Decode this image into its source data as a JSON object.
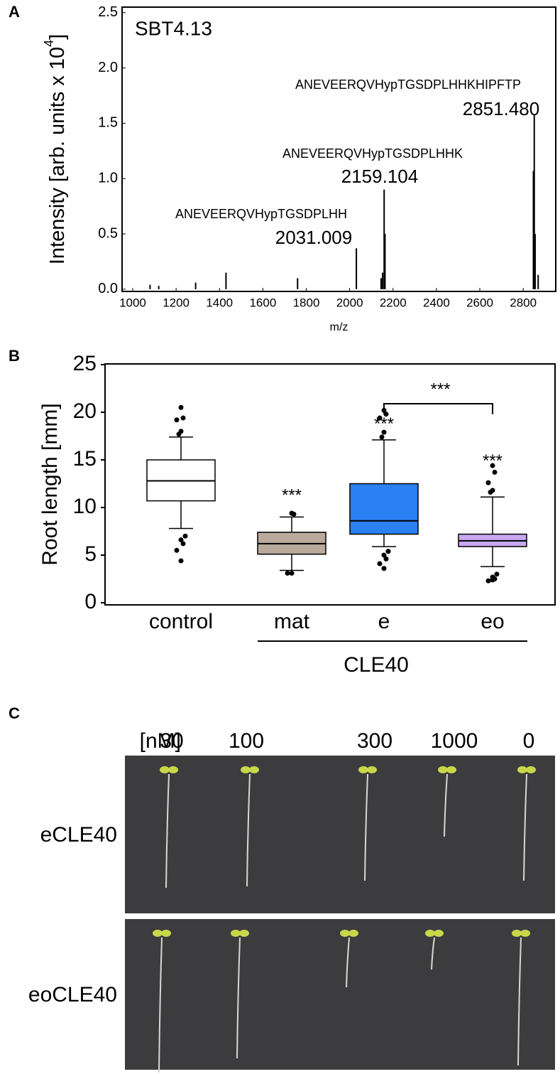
{
  "panel_labels": [
    "A",
    "B",
    "C"
  ],
  "chart_data": [
    {
      "type": "spectrum",
      "inset_title": "SBT4.13",
      "x_label": "m/z",
      "y_label": "Intensity [arb. units x 10",
      "y_label_exponent": "4",
      "y_label_end": "]",
      "x": [
        1080,
        1120,
        1290,
        1430,
        1760,
        2031,
        2145,
        2152,
        2159,
        2163,
        2847,
        2851,
        2855,
        2869
      ],
      "values": [
        0.04,
        0.03,
        0.06,
        0.15,
        0.1,
        0.37,
        0.1,
        0.15,
        0.9,
        0.5,
        1.07,
        1.58,
        0.5,
        0.13
      ],
      "color": "#000000",
      "annotations": [
        {
          "text": "ANEVEERQVHypTGSDPLHHKHIPFTP",
          "label": "2851.480"
        },
        {
          "text": "ANEVEERQVHypTGSDPLHHK",
          "label": "2159.104"
        },
        {
          "text": "ANEVEERQVHypTGSDPLHH",
          "label": "2031.009"
        }
      ],
      "annotation_color": "#e8262a",
      "xlim": [
        951,
        2950
      ],
      "ylim": [
        -0.02,
        2.55
      ],
      "xticks": [
        1000,
        1200,
        1400,
        1600,
        1800,
        2000,
        2200,
        2400,
        2600,
        2800
      ],
      "yticks": [
        {
          "value": 0,
          "label": "0.0"
        },
        0.5,
        {
          "value": 1,
          "label": "1.0"
        },
        1.5,
        {
          "value": 2,
          "label": "2.0"
        },
        2.5
      ]
    },
    {
      "type": "boxplot",
      "y_label": "Root length [mm]",
      "categories": [
        "control",
        "mat",
        "e",
        "eo"
      ],
      "group_label": "CLE40",
      "colors": [
        "#ffffff",
        "#b9aa9b",
        "#2b80f2",
        "#c8a8f2"
      ],
      "boxes": [
        {
          "q1": 10.7,
          "median": 12.8,
          "q3": 15.0,
          "whisker_low": 7.8,
          "whisker_high": 17.4,
          "outliers": [
            20.5,
            19.4,
            19.2,
            18.0,
            17.7,
            7.0,
            6.6,
            6.2,
            5.5,
            4.4
          ]
        },
        {
          "q1": 5.1,
          "median": 6.2,
          "q3": 7.4,
          "whisker_low": 3.4,
          "whisker_high": 9.0,
          "outliers": [
            9.4,
            9.3,
            3.1,
            3.1
          ]
        },
        {
          "q1": 7.2,
          "median": 8.6,
          "q3": 12.5,
          "whisker_low": 5.9,
          "whisker_high": 17.1,
          "outliers": [
            20.2,
            19.8,
            19.4,
            17.9,
            17.4,
            5.4,
            5.0,
            4.6,
            4.1,
            3.6
          ]
        },
        {
          "q1": 5.9,
          "median": 6.5,
          "q3": 7.2,
          "whisker_low": 3.8,
          "whisker_high": 11.1,
          "outliers": [
            14.4,
            13.7,
            12.6,
            11.8,
            11.6,
            3.0,
            2.7,
            2.5,
            2.3,
            2.4
          ]
        }
      ],
      "significance": [
        "***",
        "***",
        "***"
      ],
      "bracket_significance": "***",
      "significance_color": "#e8262a",
      "ylim": [
        0,
        25
      ],
      "yticks": [
        0,
        5,
        10,
        15,
        20,
        25
      ]
    }
  ],
  "photo_panel": {
    "unit": "[nM]",
    "concentrations": [
      "30",
      "100",
      "300",
      "1000",
      "0"
    ],
    "rows": [
      "eCLE40",
      "eoCLE40"
    ]
  }
}
